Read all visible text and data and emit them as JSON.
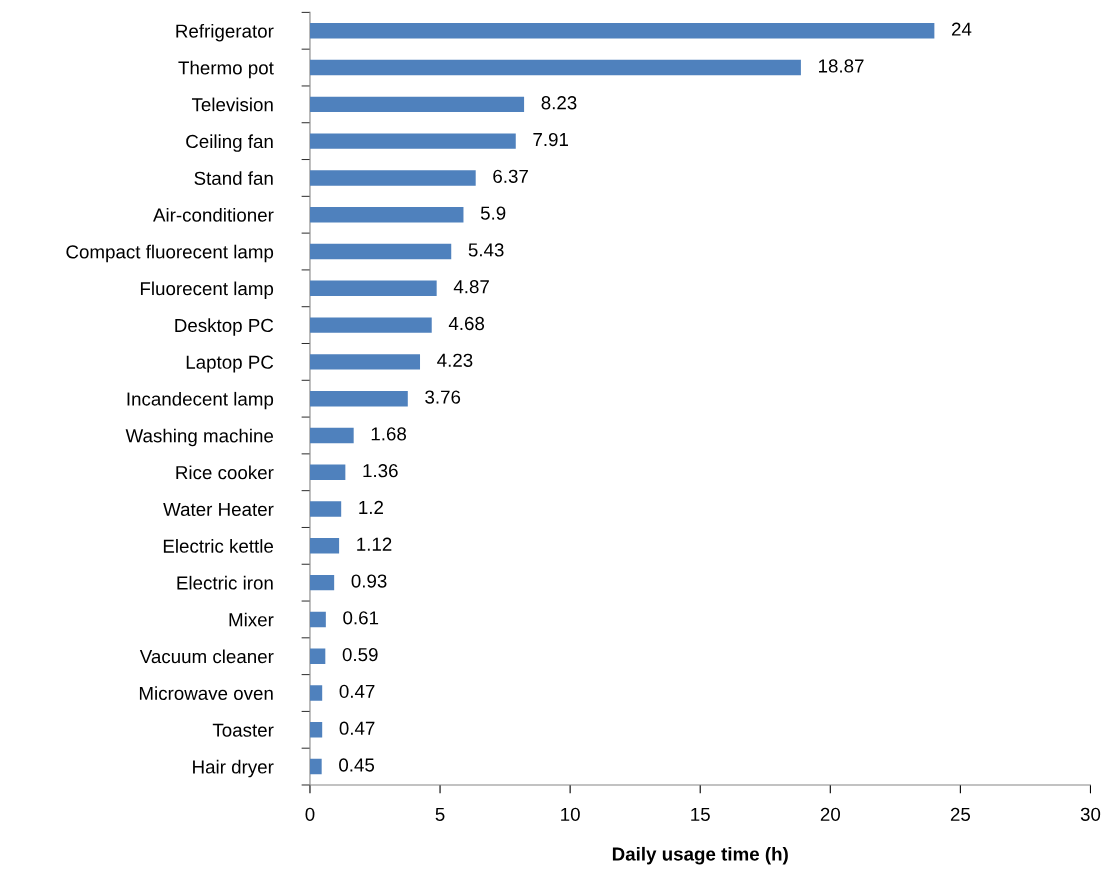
{
  "chart_data": {
    "type": "bar",
    "orientation": "horizontal",
    "xlabel": "Daily usage time (h)",
    "categories": [
      "Refrigerator",
      "Thermo pot",
      "Television",
      "Ceiling fan",
      "Stand fan",
      "Air-conditioner",
      "Compact fluorecent lamp",
      "Fluorecent lamp",
      "Desktop PC",
      "Laptop PC",
      "Incandecent lamp",
      "Washing machine",
      "Rice cooker",
      "Water Heater",
      "Electric kettle",
      "Electric iron",
      "Mixer",
      "Vacuum cleaner",
      "Microwave oven",
      "Toaster",
      "Hair dryer"
    ],
    "values": [
      24,
      18.87,
      8.23,
      7.91,
      6.37,
      5.9,
      5.43,
      4.87,
      4.68,
      4.23,
      3.76,
      1.68,
      1.36,
      1.2,
      1.12,
      0.93,
      0.61,
      0.59,
      0.47,
      0.47,
      0.45
    ],
    "color": "#4f81bd",
    "xlim": [
      0,
      30
    ],
    "xticks": [
      0,
      5,
      10,
      15,
      20,
      25,
      30
    ],
    "grid": false,
    "data_labels": true
  }
}
